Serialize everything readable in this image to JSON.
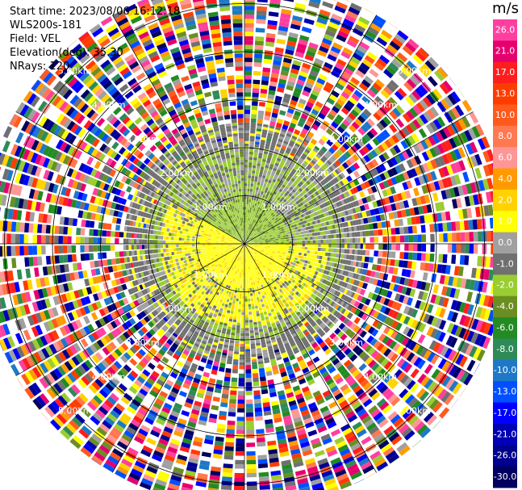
{
  "header": {
    "start_time": "Start time: 2023/08/06 16:12:18",
    "station": "WLS200s-181",
    "field": "Field: VEL",
    "elevation": "Elevation(deg): 35.30",
    "nrays": "NRays: 120"
  },
  "chart_data": {
    "type": "ppi-polar-scan",
    "field": "VEL",
    "units": "m/s",
    "nrays": 120,
    "elevation_deg": 35.3,
    "range_rings_km": [
      1.0,
      2.0,
      3.0,
      4.0,
      5.0
    ],
    "range_ring_labels": [
      "1.00km",
      "2.00km",
      "3.00km",
      "4.00km",
      "5.00km"
    ],
    "max_range_km": 5.5,
    "colorbar": {
      "title": "m/s",
      "ticks": [
        "26.0",
        "21.0",
        "17.0",
        "13.0",
        "10.0",
        "8.0",
        "6.0",
        "4.0",
        "2.0",
        "1.0",
        "0.0",
        "-1.0",
        "-2.0",
        "-4.0",
        "-6.0",
        "-8.0",
        "-10.0",
        "-13.0",
        "-17.0",
        "-21.0",
        "-26.0",
        "-30.0"
      ],
      "colors": [
        "#ff3fa0",
        "#e6006e",
        "#ff1e1e",
        "#ff3c00",
        "#ff5a1e",
        "#ff7850",
        "#ff9696",
        "#ff9b00",
        "#ffd200",
        "#ffff00",
        "#a0a0a0",
        "#707070",
        "#9acd32",
        "#6b8e23",
        "#228b22",
        "#2e8b57",
        "#1e78c8",
        "#0050ff",
        "#0000ff",
        "#0000b4",
        "#000090",
        "#000060"
      ]
    },
    "echo_summary": {
      "inner_green_ring_km": [
        1.0,
        2.0
      ],
      "yellow_region_km": [
        0.0,
        2.2
      ],
      "noisy_beyond_km": 2.5
    }
  }
}
